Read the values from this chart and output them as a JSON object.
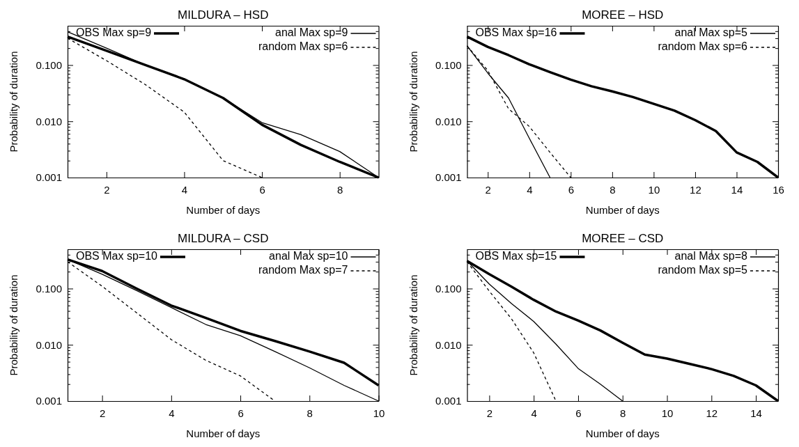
{
  "chart_data": [
    {
      "type": "line",
      "title": "MILDURA – HSD",
      "xlabel": "Number of days",
      "ylabel": "Probability of duration",
      "log": "y",
      "legend": "top",
      "grid": false,
      "xlim": [
        1,
        9
      ],
      "xticks": [
        2,
        4,
        6,
        8
      ],
      "ylim": [
        0.001,
        0.5
      ],
      "yticks": [
        {
          "value": 0.001,
          "label": "0.001"
        },
        {
          "value": 0.002,
          "label": null
        },
        {
          "value": 0.003,
          "label": null
        },
        {
          "value": 0.004,
          "label": null
        },
        {
          "value": 0.005,
          "label": null
        },
        {
          "value": 0.006,
          "label": null
        },
        {
          "value": 0.007,
          "label": null
        },
        {
          "value": 0.008,
          "label": null
        },
        {
          "value": 0.009,
          "label": null
        },
        {
          "value": 0.01,
          "label": "0.010"
        },
        {
          "value": 0.02,
          "label": null
        },
        {
          "value": 0.03,
          "label": null
        },
        {
          "value": 0.04,
          "label": null
        },
        {
          "value": 0.05,
          "label": null
        },
        {
          "value": 0.06,
          "label": null
        },
        {
          "value": 0.07,
          "label": null
        },
        {
          "value": 0.08,
          "label": null
        },
        {
          "value": 0.09,
          "label": null
        },
        {
          "value": 0.1,
          "label": "0.100"
        },
        {
          "value": 0.2,
          "label": null
        },
        {
          "value": 0.3,
          "label": null
        },
        {
          "value": 0.4,
          "label": null
        },
        {
          "value": 0.5,
          "label": null
        }
      ],
      "x": [
        1,
        2,
        3,
        4,
        5,
        6,
        7,
        8,
        9
      ],
      "series": [
        {
          "name": "OBS Max sp=9",
          "color": "#000000",
          "line_style": "solid",
          "values": [
            0.32,
            0.18,
            0.1,
            0.056,
            0.026,
            0.0087,
            0.0038,
            0.0019,
            0.001
          ]
        },
        {
          "name": "anal Max sp=9",
          "color": "#000000",
          "line_style": "solid",
          "values": [
            0.39,
            0.2,
            0.1,
            0.057,
            0.026,
            0.0095,
            0.0058,
            0.0029,
            0.001
          ]
        },
        {
          "name": "random Max sp=6",
          "color": "#000000",
          "line_style": "dashed",
          "x": [
            1,
            2,
            3,
            4,
            5,
            6
          ],
          "values": [
            0.3,
            0.12,
            0.045,
            0.0146,
            0.002,
            0.001
          ]
        }
      ]
    },
    {
      "type": "line",
      "title": "MOREE – HSD",
      "xlabel": "Number of days",
      "ylabel": "Probability of duration",
      "log": "y",
      "legend": "top",
      "grid": false,
      "xlim": [
        1,
        16
      ],
      "xticks": [
        2,
        4,
        6,
        8,
        10,
        12,
        14,
        16
      ],
      "ylim": [
        0.001,
        0.5
      ],
      "yticks": [
        {
          "value": 0.001,
          "label": "0.001"
        },
        {
          "value": 0.002,
          "label": null
        },
        {
          "value": 0.003,
          "label": null
        },
        {
          "value": 0.004,
          "label": null
        },
        {
          "value": 0.005,
          "label": null
        },
        {
          "value": 0.006,
          "label": null
        },
        {
          "value": 0.007,
          "label": null
        },
        {
          "value": 0.008,
          "label": null
        },
        {
          "value": 0.009,
          "label": null
        },
        {
          "value": 0.01,
          "label": "0.010"
        },
        {
          "value": 0.02,
          "label": null
        },
        {
          "value": 0.03,
          "label": null
        },
        {
          "value": 0.04,
          "label": null
        },
        {
          "value": 0.05,
          "label": null
        },
        {
          "value": 0.06,
          "label": null
        },
        {
          "value": 0.07,
          "label": null
        },
        {
          "value": 0.08,
          "label": null
        },
        {
          "value": 0.09,
          "label": null
        },
        {
          "value": 0.1,
          "label": "0.100"
        },
        {
          "value": 0.2,
          "label": null
        },
        {
          "value": 0.3,
          "label": null
        },
        {
          "value": 0.4,
          "label": null
        },
        {
          "value": 0.5,
          "label": null
        }
      ],
      "x": [
        1,
        2,
        3,
        4,
        5,
        6,
        7,
        8,
        9,
        10,
        11,
        12,
        13,
        14,
        15,
        16
      ],
      "series": [
        {
          "name": "OBS Max sp=16",
          "color": "#000000",
          "line_style": "solid",
          "values": [
            0.32,
            0.21,
            0.15,
            0.103,
            0.075,
            0.055,
            0.042,
            0.034,
            0.027,
            0.0205,
            0.0155,
            0.0105,
            0.0067,
            0.0028,
            0.0019,
            0.001
          ]
        },
        {
          "name": "anal Max sp=5",
          "color": "#000000",
          "line_style": "solid",
          "x": [
            1,
            2,
            3,
            4,
            5
          ],
          "values": [
            0.22,
            0.072,
            0.026,
            0.005,
            0.001
          ]
        },
        {
          "name": "random Max sp=6",
          "color": "#000000",
          "line_style": "dashed",
          "x": [
            1,
            2,
            3,
            4,
            5,
            6
          ],
          "values": [
            0.22,
            0.08,
            0.0167,
            0.0081,
            0.0028,
            0.001
          ]
        }
      ]
    },
    {
      "type": "line",
      "title": "MILDURA – CSD",
      "xlabel": "Number of days",
      "ylabel": "Probability of duration",
      "log": "y",
      "legend": "top",
      "grid": false,
      "xlim": [
        1,
        10
      ],
      "xticks": [
        2,
        4,
        6,
        8,
        10
      ],
      "ylim": [
        0.001,
        0.5
      ],
      "yticks": [
        {
          "value": 0.001,
          "label": "0.001"
        },
        {
          "value": 0.002,
          "label": null
        },
        {
          "value": 0.003,
          "label": null
        },
        {
          "value": 0.004,
          "label": null
        },
        {
          "value": 0.005,
          "label": null
        },
        {
          "value": 0.006,
          "label": null
        },
        {
          "value": 0.007,
          "label": null
        },
        {
          "value": 0.008,
          "label": null
        },
        {
          "value": 0.009,
          "label": null
        },
        {
          "value": 0.01,
          "label": "0.010"
        },
        {
          "value": 0.02,
          "label": null
        },
        {
          "value": 0.03,
          "label": null
        },
        {
          "value": 0.04,
          "label": null
        },
        {
          "value": 0.05,
          "label": null
        },
        {
          "value": 0.06,
          "label": null
        },
        {
          "value": 0.07,
          "label": null
        },
        {
          "value": 0.08,
          "label": null
        },
        {
          "value": 0.09,
          "label": null
        },
        {
          "value": 0.1,
          "label": "0.100"
        },
        {
          "value": 0.2,
          "label": null
        },
        {
          "value": 0.3,
          "label": null
        },
        {
          "value": 0.4,
          "label": null
        },
        {
          "value": 0.5,
          "label": null
        }
      ],
      "x": [
        1,
        2,
        3,
        4,
        5,
        6,
        7,
        8,
        9,
        10
      ],
      "series": [
        {
          "name": "OBS Max sp=10",
          "color": "#000000",
          "line_style": "solid",
          "values": [
            0.33,
            0.205,
            0.1,
            0.05,
            0.03,
            0.0177,
            0.0117,
            0.0076,
            0.0048,
            0.0019
          ]
        },
        {
          "name": "anal Max sp=10",
          "color": "#000000",
          "line_style": "solid",
          "values": [
            0.33,
            0.18,
            0.092,
            0.046,
            0.023,
            0.0145,
            0.0076,
            0.0039,
            0.0019,
            0.001
          ]
        },
        {
          "name": "random Max sp=7",
          "color": "#000000",
          "line_style": "dashed",
          "x": [
            1,
            2,
            3,
            4,
            5,
            6,
            7
          ],
          "values": [
            0.3,
            0.11,
            0.037,
            0.0124,
            0.0053,
            0.0028,
            0.001
          ]
        }
      ]
    },
    {
      "type": "line",
      "title": "MOREE – CSD",
      "xlabel": "Number of days",
      "ylabel": "Probability of duration",
      "log": "y",
      "legend": "top",
      "grid": false,
      "xlim": [
        1,
        15
      ],
      "xticks": [
        2,
        4,
        6,
        8,
        10,
        12,
        14
      ],
      "ylim": [
        0.001,
        0.5
      ],
      "yticks": [
        {
          "value": 0.001,
          "label": "0.001"
        },
        {
          "value": 0.002,
          "label": null
        },
        {
          "value": 0.003,
          "label": null
        },
        {
          "value": 0.004,
          "label": null
        },
        {
          "value": 0.005,
          "label": null
        },
        {
          "value": 0.006,
          "label": null
        },
        {
          "value": 0.007,
          "label": null
        },
        {
          "value": 0.008,
          "label": null
        },
        {
          "value": 0.009,
          "label": null
        },
        {
          "value": 0.01,
          "label": "0.010"
        },
        {
          "value": 0.02,
          "label": null
        },
        {
          "value": 0.03,
          "label": null
        },
        {
          "value": 0.04,
          "label": null
        },
        {
          "value": 0.05,
          "label": null
        },
        {
          "value": 0.06,
          "label": null
        },
        {
          "value": 0.07,
          "label": null
        },
        {
          "value": 0.08,
          "label": null
        },
        {
          "value": 0.09,
          "label": null
        },
        {
          "value": 0.1,
          "label": "0.100"
        },
        {
          "value": 0.2,
          "label": null
        },
        {
          "value": 0.3,
          "label": null
        },
        {
          "value": 0.4,
          "label": null
        },
        {
          "value": 0.5,
          "label": null
        }
      ],
      "x": [
        1,
        2,
        3,
        4,
        5,
        6,
        7,
        8,
        9,
        10,
        11,
        12,
        13,
        14,
        15
      ],
      "series": [
        {
          "name": "OBS Max sp=15",
          "color": "#000000",
          "line_style": "solid",
          "values": [
            0.31,
            0.18,
            0.108,
            0.063,
            0.039,
            0.027,
            0.018,
            0.0109,
            0.0067,
            0.0057,
            0.0046,
            0.0037,
            0.0028,
            0.0019,
            0.001
          ]
        },
        {
          "name": "anal Max sp=8",
          "color": "#000000",
          "line_style": "solid",
          "x": [
            1,
            2,
            3,
            4,
            5,
            6,
            7,
            8
          ],
          "values": [
            0.31,
            0.12,
            0.054,
            0.026,
            0.0103,
            0.0038,
            0.002,
            0.001
          ]
        },
        {
          "name": "random Max sp=5",
          "color": "#000000",
          "line_style": "dashed",
          "x": [
            1,
            2,
            3,
            4,
            5
          ],
          "values": [
            0.3,
            0.09,
            0.029,
            0.0072,
            0.001
          ]
        }
      ]
    }
  ]
}
